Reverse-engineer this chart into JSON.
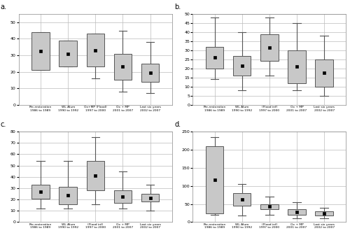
{
  "subplots": [
    {
      "label": "a.",
      "ylim": [
        0,
        55
      ],
      "yticks": [
        0,
        10,
        20,
        30,
        40,
        50
      ],
      "boxes": [
        {
          "q1": 21,
          "q3": 44,
          "whislo": 21,
          "whishi": 44
        },
        {
          "q1": 23,
          "q3": 39,
          "whislo": 23,
          "whishi": 39
        },
        {
          "q1": 23,
          "q3": 43,
          "whislo": 16,
          "whishi": 43
        },
        {
          "q1": 15,
          "q3": 31,
          "whislo": 8,
          "whishi": 45
        },
        {
          "q1": 14,
          "q3": 25,
          "whislo": 7,
          "whishi": 38
        }
      ],
      "xlabels": [
        "Pre-restoration\n1986 to 1989",
        "WL Alum\n1990 to 1992",
        "Ox+MP (Flood)\n1997 to 2000",
        "Ox + MP\n2001 to 2007",
        "Last six years\n2002 to 2007"
      ]
    },
    {
      "label": "b.",
      "ylim": [
        0,
        50
      ],
      "yticks": [
        0,
        5,
        10,
        15,
        20,
        25,
        30,
        35,
        40,
        45,
        50
      ],
      "boxes": [
        {
          "q1": 20,
          "q3": 32,
          "whislo": 14,
          "whishi": 48
        },
        {
          "q1": 16,
          "q3": 27,
          "whislo": 8,
          "whishi": 40
        },
        {
          "q1": 24,
          "q3": 39,
          "whislo": 16,
          "whishi": 48
        },
        {
          "q1": 12,
          "q3": 30,
          "whislo": 8,
          "whishi": 45
        },
        {
          "q1": 10,
          "q3": 25,
          "whislo": 5,
          "whishi": 38
        }
      ],
      "xlabels": [
        "Pre-restoration\n1986 to 1989",
        "WL Alum\n1990 to 1992",
        "(Flood inf)\n1997 to 2000",
        "Ox + MP\n2001 to 2007",
        "Last six years\n2002 to 2007"
      ]
    },
    {
      "label": "c.",
      "ylim": [
        0,
        80
      ],
      "yticks": [
        0,
        10,
        20,
        30,
        40,
        50,
        60,
        70,
        80
      ],
      "boxes": [
        {
          "q1": 21,
          "q3": 33,
          "whislo": 12,
          "whishi": 54
        },
        {
          "q1": 16,
          "q3": 31,
          "whislo": 12,
          "whishi": 54
        },
        {
          "q1": 28,
          "q3": 54,
          "whislo": 16,
          "whishi": 75
        },
        {
          "q1": 17,
          "q3": 28,
          "whislo": 12,
          "whishi": 45
        },
        {
          "q1": 18,
          "q3": 25,
          "whislo": 10,
          "whishi": 33
        }
      ],
      "xlabels": [
        "Pre-restoration\n1986 to 1989",
        "WL Alum\n1990 to 1992",
        "(Flood inf)\n1997 to 2000",
        "Ox + MP\n2001 to 2007",
        "Last six years\n2002 to 2007"
      ]
    },
    {
      "label": "d.",
      "ylim": [
        0,
        250
      ],
      "yticks": [
        0,
        50,
        100,
        150,
        200,
        250
      ],
      "boxes": [
        {
          "q1": 25,
          "q3": 210,
          "whislo": 20,
          "whishi": 235
        },
        {
          "q1": 45,
          "q3": 80,
          "whislo": 18,
          "whishi": 105
        },
        {
          "q1": 35,
          "q3": 50,
          "whislo": 20,
          "whishi": 70
        },
        {
          "q1": 20,
          "q3": 35,
          "whislo": 10,
          "whishi": 55
        },
        {
          "q1": 18,
          "q3": 30,
          "whislo": 10,
          "whishi": 40
        }
      ],
      "xlabels": [
        "Pre-restoration\n1986 to 1989",
        "WL Alum\n1990 to 1992",
        "(Flood inf)\n1997 to 2000",
        "Ox + MP\n2001 to 2007",
        "Last six years\n2002 to 2007"
      ]
    }
  ],
  "box_facecolor": "#c8c8c8",
  "box_edgecolor": "#555555",
  "whisker_color": "#555555",
  "background_color": "#ffffff",
  "grid_color": "#bbbbbb",
  "box_width": 0.65
}
